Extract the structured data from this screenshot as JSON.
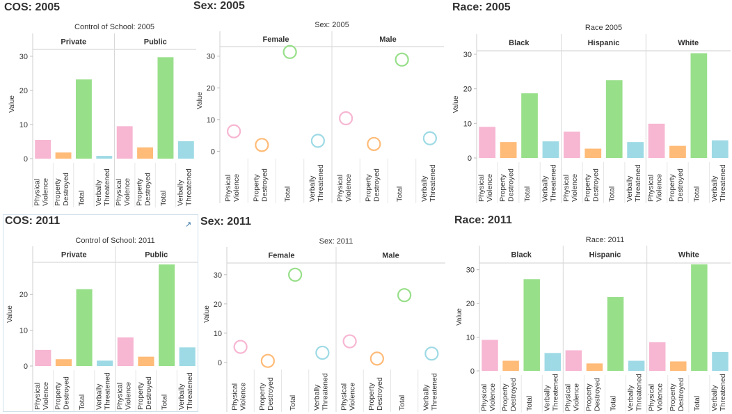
{
  "colors": {
    "Physical Violence": "#f7b6d2",
    "Property Destroyed": "#ffbb78",
    "Total": "#98df8a",
    "Verbally Threatened": "#9edae5"
  },
  "panels": [
    {
      "id": "cos2005",
      "title": "COS: 2005",
      "chart_title": "Control of School: 2005",
      "chart_data": {
        "type": "bar",
        "title": "Control of School: 2005",
        "ylabel": "Value",
        "ylim": [
          0,
          32
        ],
        "yticks": [
          0,
          10,
          20,
          30
        ],
        "facets": [
          "Private",
          "Public"
        ],
        "categories": [
          "Physical Violence",
          "Property Destroyed",
          "Total",
          "Verbally Threatened"
        ],
        "values": [
          [
            5.5,
            1.8,
            23.2,
            0.8
          ],
          [
            9.5,
            3.3,
            29.7,
            5.1
          ]
        ]
      }
    },
    {
      "id": "sex2005",
      "title": "Sex: 2005",
      "chart_title": "Sex: 2005",
      "chart_data": {
        "type": "scatter",
        "title": "Sex: 2005",
        "ylabel": "Value",
        "ylim": [
          -1,
          33
        ],
        "yticks": [
          0,
          10,
          20,
          30
        ],
        "facets": [
          "Female",
          "Male"
        ],
        "categories": [
          "Physical Violence",
          "Property Destroyed",
          "Total",
          "Verbally Threatened"
        ],
        "values": [
          [
            6.3,
            2.0,
            31.3,
            3.3
          ],
          [
            10.4,
            2.3,
            28.9,
            4.1
          ]
        ]
      }
    },
    {
      "id": "race2005",
      "title": "Race: 2005",
      "chart_title": "Race 2005",
      "chart_data": {
        "type": "bar",
        "title": "Race 2005",
        "ylabel": "Value",
        "ylim": [
          0,
          31
        ],
        "yticks": [
          0,
          10,
          20,
          30
        ],
        "facets": [
          "Black",
          "Hispanic",
          "White"
        ],
        "categories": [
          "Physical Violence",
          "Property Destroyed",
          "Total",
          "Verbally Threatened"
        ],
        "values": [
          [
            9.0,
            4.6,
            18.7,
            4.8
          ],
          [
            7.6,
            2.7,
            22.5,
            4.6
          ],
          [
            9.9,
            3.5,
            30.3,
            5.1
          ]
        ]
      }
    },
    {
      "id": "cos2011",
      "title": "COS: 2011",
      "chart_title": "Control of School: 2011",
      "selected": true,
      "chart_data": {
        "type": "bar",
        "title": "Control of School: 2011",
        "ylabel": "Value",
        "ylim": [
          0,
          29
        ],
        "yticks": [
          0,
          10,
          20
        ],
        "facets": [
          "Private",
          "Public"
        ],
        "categories": [
          "Physical Violence",
          "Property Destroyed",
          "Total",
          "Verbally Threatened"
        ],
        "values": [
          [
            4.5,
            1.9,
            21.5,
            1.5
          ],
          [
            8.0,
            2.6,
            28.4,
            5.2
          ]
        ]
      }
    },
    {
      "id": "sex2011",
      "title": "Sex: 2011",
      "chart_title": "Sex: 2011",
      "chart_data": {
        "type": "scatter",
        "title": "Sex: 2011",
        "ylabel": "Value",
        "ylim": [
          -1,
          34
        ],
        "yticks": [
          0,
          10,
          20,
          30
        ],
        "facets": [
          "Female",
          "Male"
        ],
        "categories": [
          "Physical Violence",
          "Property Destroyed",
          "Total",
          "Verbally Threatened"
        ],
        "values": [
          [
            5.3,
            0.5,
            30.0,
            3.3
          ],
          [
            7.2,
            1.3,
            23.0,
            3.0
          ]
        ]
      }
    },
    {
      "id": "race2011",
      "title": "Race: 2011",
      "chart_title": "Race: 2011",
      "chart_data": {
        "type": "bar",
        "title": "Race: 2011",
        "ylabel": "Value",
        "ylim": [
          0,
          32
        ],
        "yticks": [
          0,
          10,
          20,
          30
        ],
        "facets": [
          "Black",
          "Hispanic",
          "White"
        ],
        "categories": [
          "Physical Violence",
          "Property Destroyed",
          "Total",
          "Verbally Threatened"
        ],
        "values": [
          [
            9.2,
            3.0,
            27.2,
            5.3
          ],
          [
            6.1,
            2.2,
            21.9,
            3.0
          ],
          [
            8.5,
            2.8,
            31.6,
            5.6
          ]
        ]
      }
    }
  ]
}
